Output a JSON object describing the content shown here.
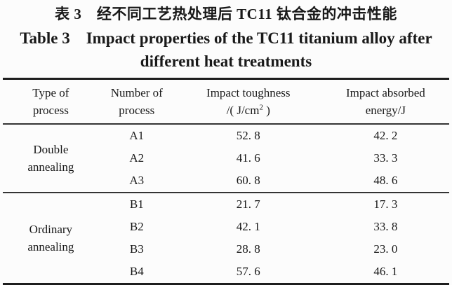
{
  "page": {
    "background": "#fcfcfc",
    "text_color": "#191919",
    "rule_color_thick": "#1e1e1e",
    "rule_color_thin": "#343434"
  },
  "caption": {
    "chinese": "表 3　经不同工艺热处理后 TC11 钛合金的冲击性能",
    "english_line1": "Table 3 Impact properties of the TC11 titanium alloy after",
    "english_line2": "different heat treatments"
  },
  "table": {
    "headers": {
      "col1_line1": "Type of",
      "col1_line2": "process",
      "col2_line1": "Number of",
      "col2_line2": "process",
      "col3_line1": "Impact toughness",
      "col3_unit_base": "/( J/cm",
      "col3_unit_sup": "2",
      "col3_unit_close": " )",
      "col4_line1": "Impact absorbed",
      "col4_line2": "energy/J"
    },
    "groups": [
      {
        "id": "double-annealing",
        "type_line1": "Double",
        "type_line2": "annealing",
        "rows": [
          {
            "number": "A1",
            "toughness": "52. 8",
            "energy": "42. 2"
          },
          {
            "number": "A2",
            "toughness": "41. 6",
            "energy": "33. 3"
          },
          {
            "number": "A3",
            "toughness": "60. 8",
            "energy": "48. 6"
          }
        ]
      },
      {
        "id": "ordinary-annealing",
        "type_line1": "Ordinary",
        "type_line2": "annealing",
        "rows": [
          {
            "number": "B1",
            "toughness": "21. 7",
            "energy": "17. 3"
          },
          {
            "number": "B2",
            "toughness": "42. 1",
            "energy": "33. 8"
          },
          {
            "number": "B3",
            "toughness": "28. 8",
            "energy": "23. 0"
          },
          {
            "number": "B4",
            "toughness": "57. 6",
            "energy": "46. 1"
          }
        ]
      }
    ]
  }
}
